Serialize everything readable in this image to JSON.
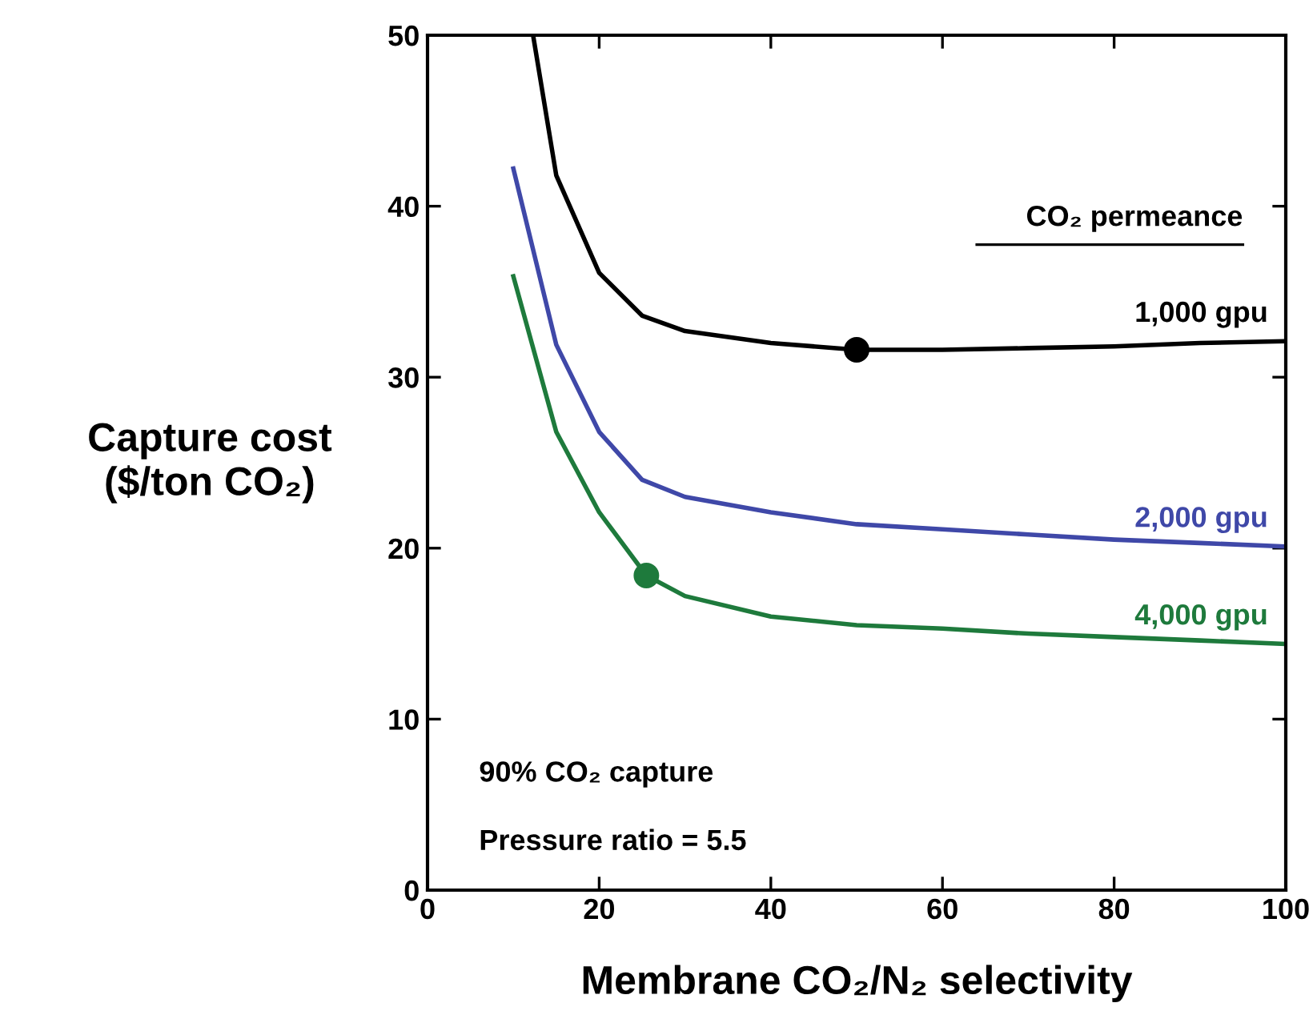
{
  "chart_data": {
    "type": "line",
    "xlabel": "Membrane CO₂/N₂ selectivity",
    "ylabel": "Capture cost\n($/ton CO₂)",
    "xlim": [
      0,
      100
    ],
    "ylim": [
      0,
      50
    ],
    "xticks": [
      0,
      20,
      40,
      60,
      80,
      100
    ],
    "yticks": [
      0,
      10,
      20,
      30,
      40,
      50
    ],
    "grid": false,
    "marker": "none",
    "line_style": "solid",
    "annotations": [
      "CO₂ permeance",
      "90% CO₂ capture",
      "Pressure ratio = 5.5"
    ],
    "series": [
      {
        "name": "1,000 gpu",
        "color": "#000000",
        "x": [
          12.3,
          15,
          20,
          25,
          30,
          40,
          50,
          60,
          70,
          80,
          90,
          100
        ],
        "values": [
          50,
          41.8,
          36.1,
          33.6,
          32.7,
          32.0,
          31.6,
          31.6,
          31.7,
          31.8,
          32.0,
          32.1
        ]
      },
      {
        "name": "2,000 gpu",
        "color": "#3f48a8",
        "x": [
          10,
          15,
          20,
          25,
          30,
          40,
          50,
          60,
          70,
          80,
          90,
          100
        ],
        "values": [
          42.2,
          31.9,
          26.8,
          24.0,
          23.0,
          22.1,
          21.4,
          21.1,
          20.8,
          20.5,
          20.3,
          20.1
        ]
      },
      {
        "name": "4,000 gpu",
        "color": "#1e7a3c",
        "x": [
          10,
          15,
          20,
          25.5,
          30,
          40,
          50,
          60,
          70,
          80,
          90,
          100
        ],
        "values": [
          35.9,
          26.8,
          22.1,
          18.4,
          17.2,
          16.0,
          15.5,
          15.3,
          15.0,
          14.8,
          14.6,
          14.4
        ]
      },
      {
        "type": "scatter",
        "color": "#000000",
        "marker": "circle",
        "x": [
          50
        ],
        "values": [
          31.6
        ]
      },
      {
        "type": "scatter",
        "color": "#1e7a3c",
        "marker": "circle",
        "x": [
          25.5
        ],
        "values": [
          18.4
        ]
      }
    ]
  }
}
